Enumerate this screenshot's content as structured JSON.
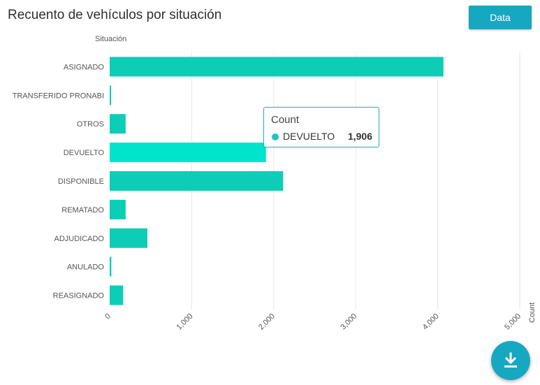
{
  "header": {
    "title": "Recuento de vehículos por situación",
    "data_button_label": "Data"
  },
  "tooltip": {
    "title": "Count",
    "label": "DEVUELTO",
    "value": "1,906",
    "color": "#1ec6b9"
  },
  "download_button": {
    "icon": "download-icon"
  },
  "colors": {
    "bar": "#0ecdb6",
    "bar_highlight": "#00e4cc",
    "grid": "#e6e6e6",
    "accent": "#16a8c1"
  },
  "chart_data": {
    "type": "bar",
    "orientation": "horizontal",
    "categories": [
      "ASIGNADO",
      "TRANSFERIDO PRONABI",
      "OTROS",
      "DEVUELTO",
      "DISPONIBLE",
      "REMATADO",
      "ADJUDICADO",
      "ANULADO",
      "REASIGNADO"
    ],
    "values": [
      4070,
      15,
      195,
      1906,
      2115,
      195,
      460,
      20,
      165
    ],
    "highlight_category": "DEVUELTO",
    "xlabel": "Count",
    "ylabel": "Situación",
    "xlim": [
      0,
      5000
    ],
    "xticks": [
      0,
      1000,
      2000,
      3000,
      4000,
      5000
    ],
    "xtick_labels": [
      "0",
      "1,000",
      "2,000",
      "3,000",
      "4,000",
      "5,000"
    ],
    "grid": true
  }
}
